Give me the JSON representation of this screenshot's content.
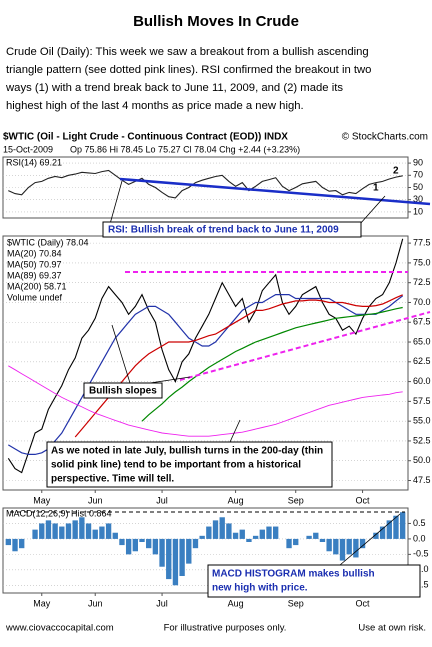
{
  "title": "Bullish Moves In Crude",
  "intro_lines": [
    "Crude Oil (Daily):  This week we saw a breakout from a bullish ascending",
    "triangle pattern (see dotted pink lines).  RSI confirmed the breakout in two",
    "ways (1) with a trend break back to June 11, 2009, and (2) made its",
    "highest high of the last 4 months as price made a new high."
  ],
  "chart_header": "$WTIC (Oil - Light Crude - Continuous Contract (EOD)) INDX",
  "source": "© StockCharts.com",
  "date": "15-Oct-2009",
  "quote": "Op 75.86  Hi 78.45  Lo 75.27  Cl 78.04  Chg +2.44 (+3.23%)",
  "volume_label": "Volume undef",
  "annotations": {
    "rsi_break": "RSI: Bullish break of trend back to June 11, 2009",
    "mark1": "1",
    "mark2": "2",
    "slopes": "Bullish slopes",
    "ma200_lines": [
      "As we noted in late July, bullish turns in the 200-day (thin",
      "solid pink line) tend to be important from a  historical",
      "perspective.  Time will tell."
    ],
    "macd_lines": [
      "MACD HISTOGRAM makes bullish",
      "new high with price."
    ]
  },
  "footer": {
    "left": "www.ciovaccocapital.com",
    "center": "For illustrative purposes only.",
    "right": "Use at own risk."
  },
  "chart_data": [
    {
      "type": "line",
      "title": "RSI(14) 69.21",
      "ylim": [
        0,
        100
      ],
      "yticks": [
        10,
        30,
        50,
        70,
        90
      ],
      "grid": true,
      "series": [
        {
          "name": "RSI(14)",
          "color": "#222222",
          "values": [
            45,
            40,
            38,
            50,
            58,
            60,
            65,
            68,
            66,
            70,
            72,
            75,
            74,
            73,
            76,
            78,
            70,
            62,
            55,
            60,
            65,
            55,
            50,
            42,
            35,
            33,
            45,
            50,
            58,
            62,
            65,
            68,
            70,
            60,
            52,
            58,
            45,
            52,
            60,
            63,
            66,
            52,
            45,
            50,
            56,
            58,
            60,
            50,
            44,
            45,
            38,
            42,
            40,
            48,
            55,
            58,
            60,
            64,
            67,
            69.21
          ]
        }
      ]
    },
    {
      "type": "line",
      "ylim": [
        46.3,
        78.4
      ],
      "grid": true,
      "yticks": [
        47.5,
        {
          "value": 50,
          "label": "50.0"
        },
        52.5,
        {
          "value": 55,
          "label": "55.0"
        },
        57.5,
        {
          "value": 60,
          "label": "60.0"
        },
        62.5,
        {
          "value": 65,
          "label": "65.0"
        },
        67.5,
        {
          "value": 70,
          "label": "70.0"
        },
        72.5,
        {
          "value": 75,
          "label": "75.0"
        },
        77.5
      ],
      "categories": [
        null,
        null,
        null,
        null,
        null,
        "May",
        null,
        null,
        null,
        null,
        null,
        null,
        null,
        "Jun",
        null,
        null,
        null,
        null,
        null,
        null,
        null,
        null,
        null,
        "Jul",
        null,
        null,
        null,
        null,
        null,
        null,
        null,
        null,
        null,
        null,
        "Aug",
        null,
        null,
        null,
        null,
        null,
        null,
        null,
        null,
        "Sep",
        null,
        null,
        null,
        null,
        null,
        null,
        null,
        null,
        null,
        "Oct",
        null,
        null,
        null,
        null,
        null,
        null
      ],
      "series": [
        {
          "name": "$WTIC (Daily) 78.04",
          "color": "#000000",
          "values": [
            50.3,
            49.0,
            48.5,
            51.0,
            53.5,
            54.0,
            56.5,
            58.0,
            59.5,
            61.5,
            63.0,
            65.5,
            66.5,
            68.0,
            70.5,
            72.0,
            71.0,
            70.0,
            68.5,
            69.5,
            71.0,
            69.0,
            67.5,
            64.0,
            61.5,
            60.0,
            62.5,
            63.5,
            65.5,
            67.0,
            68.5,
            70.5,
            72.5,
            71.0,
            69.5,
            70.5,
            67.5,
            69.0,
            71.5,
            72.5,
            73.5,
            70.0,
            68.5,
            69.5,
            71.0,
            71.5,
            72.0,
            70.0,
            68.5,
            68.0,
            66.5,
            67.0,
            66.0,
            68.0,
            69.5,
            70.5,
            71.0,
            72.5,
            75.0,
            78.04
          ]
        },
        {
          "name": "MA(20) 70.84",
          "color": "#2233aa",
          "values": [
            52,
            51.5,
            51,
            50.8,
            50.8,
            51,
            51.5,
            52.5,
            53.5,
            55,
            56.5,
            58,
            59.5,
            61,
            62.5,
            64,
            65.5,
            66.5,
            67.5,
            68.5,
            69,
            69.5,
            69.5,
            69,
            68.5,
            67.5,
            66.5,
            65.5,
            65,
            64.5,
            64.5,
            65,
            66,
            67,
            68,
            69,
            69.5,
            70,
            70,
            70.5,
            71,
            71,
            71,
            70.5,
            70.5,
            70.5,
            70.5,
            70.5,
            70.5,
            70,
            69.5,
            69,
            68.5,
            68.5,
            68.5,
            68.5,
            69,
            69.5,
            70.2,
            70.84
          ]
        },
        {
          "name": "MA(50) 70.97",
          "color": "#cc0000",
          "values": [
            null,
            null,
            null,
            null,
            null,
            null,
            null,
            null,
            null,
            null,
            53,
            54,
            55,
            56,
            57,
            58,
            59,
            60,
            61,
            62,
            62.8,
            63.5,
            64,
            64.5,
            65,
            65,
            65,
            65,
            65.2,
            65.5,
            65.8,
            66,
            66.5,
            67,
            67.5,
            68,
            68.5,
            69,
            69,
            69.2,
            69.5,
            69.8,
            70,
            70.2,
            70.2,
            70.3,
            70.3,
            70.2,
            70,
            70,
            70,
            69.8,
            69.6,
            69.5,
            69.5,
            69.6,
            69.8,
            70.2,
            70.6,
            70.97
          ]
        },
        {
          "name": "MA(89) 69.37",
          "color": "#008800",
          "values": [
            null,
            null,
            null,
            null,
            null,
            null,
            null,
            null,
            null,
            null,
            null,
            null,
            null,
            null,
            null,
            null,
            null,
            null,
            null,
            null,
            55,
            55.8,
            56.5,
            57.2,
            58,
            58.7,
            59.3,
            60,
            60.6,
            61.2,
            61.8,
            62.3,
            62.8,
            63.3,
            63.8,
            64.2,
            64.6,
            65,
            65.3,
            65.6,
            65.9,
            66.2,
            66.5,
            66.8,
            67,
            67.2,
            67.4,
            67.6,
            67.8,
            68,
            68.1,
            68.2,
            68.3,
            68.4,
            68.5,
            68.6,
            68.8,
            69,
            69.2,
            69.37
          ]
        },
        {
          "name": "MA(200) 58.71",
          "color": "#ee22ee",
          "values": [
            62,
            61.5,
            61,
            60.5,
            60,
            59.5,
            59,
            58.5,
            58,
            57.6,
            57.2,
            56.8,
            56.4,
            56,
            55.7,
            55.4,
            55.1,
            54.8,
            54.5,
            54.3,
            54.1,
            53.9,
            53.7,
            53.5,
            53.4,
            53.3,
            53.2,
            53.1,
            53.1,
            53.1,
            53.1,
            53.2,
            53.3,
            53.4,
            53.5,
            53.6,
            53.8,
            54,
            54.2,
            54.4,
            54.6,
            54.9,
            55.2,
            55.5,
            55.8,
            56.1,
            56.4,
            56.7,
            57,
            57.2,
            57.4,
            57.6,
            57.8,
            58,
            58.1,
            58.2,
            58.3,
            58.4,
            58.6,
            58.71
          ]
        }
      ]
    },
    {
      "type": "bar",
      "title": "MACD(12,26,9) Hist 0.864",
      "ylim": [
        -1.75,
        1.0
      ],
      "grid": true,
      "color": "#3a7fc1",
      "yticks": [
        0.5,
        {
          "value": 0,
          "label": "0.0"
        },
        -0.5,
        {
          "value": -1,
          "label": "-1.0"
        },
        -1.5
      ],
      "categories": [
        null,
        null,
        null,
        null,
        null,
        "May",
        null,
        null,
        null,
        null,
        null,
        null,
        null,
        "Jun",
        null,
        null,
        null,
        null,
        null,
        null,
        null,
        null,
        null,
        "Jul",
        null,
        null,
        null,
        null,
        null,
        null,
        null,
        null,
        null,
        null,
        "Aug",
        null,
        null,
        null,
        null,
        null,
        null,
        null,
        null,
        "Sep",
        null,
        null,
        null,
        null,
        null,
        null,
        null,
        null,
        null,
        "Oct",
        null,
        null,
        null,
        null,
        null,
        null
      ],
      "values": [
        -0.2,
        -0.4,
        -0.3,
        0.0,
        0.3,
        0.5,
        0.6,
        0.5,
        0.4,
        0.5,
        0.6,
        0.7,
        0.5,
        0.3,
        0.4,
        0.5,
        0.2,
        -0.2,
        -0.5,
        -0.4,
        -0.1,
        -0.3,
        -0.5,
        -0.9,
        -1.3,
        -1.5,
        -1.2,
        -0.8,
        -0.3,
        0.1,
        0.4,
        0.6,
        0.7,
        0.5,
        0.2,
        0.3,
        -0.1,
        0.1,
        0.3,
        0.4,
        0.4,
        0.0,
        -0.3,
        -0.2,
        0.0,
        0.1,
        0.2,
        -0.1,
        -0.4,
        -0.5,
        -0.7,
        -0.5,
        -0.6,
        -0.3,
        0.0,
        0.2,
        0.4,
        0.6,
        0.75,
        0.864
      ]
    }
  ]
}
